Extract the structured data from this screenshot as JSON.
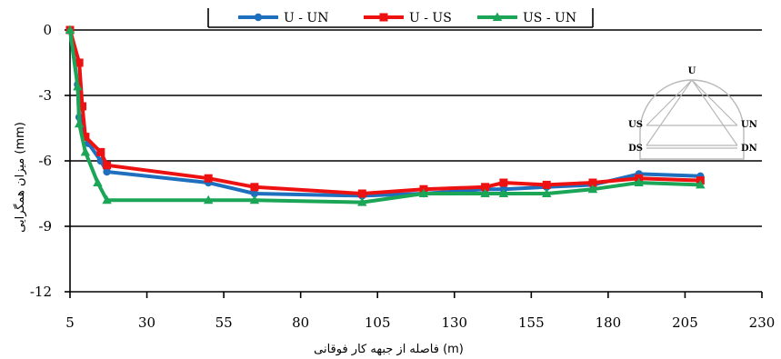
{
  "chart_data": {
    "type": "line",
    "xlabel": "فاصله از جبهه کار فوقانی (m)",
    "ylabel": "میزان همگرایی (mm)",
    "xlim": [
      5,
      230
    ],
    "ylim": [
      -12,
      0
    ],
    "xticks": [
      5,
      30,
      55,
      80,
      105,
      130,
      155,
      180,
      205,
      230
    ],
    "yticks": [
      0,
      -3,
      -6,
      -9,
      -12
    ],
    "grid": "horizontal",
    "legend_position": "top",
    "series": [
      {
        "name": "U - UN",
        "color": "#1f6fbf",
        "marker": "circle",
        "x": [
          5,
          7.5,
          8,
          11,
          15,
          17,
          50,
          65,
          100,
          120,
          140,
          146,
          160,
          175,
          190,
          210
        ],
        "y": [
          0,
          -2.5,
          -4,
          -5.2,
          -6,
          -6.5,
          -7,
          -7.5,
          -7.6,
          -7.5,
          -7.3,
          -7.3,
          -7.2,
          -7.1,
          -6.6,
          -6.7
        ]
      },
      {
        "name": "U - US",
        "color": "#ee1111",
        "marker": "square",
        "x": [
          5,
          8,
          9,
          10,
          15,
          17,
          50,
          65,
          100,
          120,
          140,
          146,
          160,
          175,
          190,
          210
        ],
        "y": [
          0,
          -1.5,
          -3.5,
          -4.9,
          -5.6,
          -6.2,
          -6.8,
          -7.2,
          -7.5,
          -7.3,
          -7.2,
          -7,
          -7.1,
          -7,
          -6.8,
          -6.9
        ]
      },
      {
        "name": "US - UN",
        "color": "#1aa557",
        "marker": "triangle",
        "x": [
          5,
          7.5,
          8,
          10,
          14,
          17,
          50,
          65,
          100,
          120,
          140,
          146,
          160,
          175,
          190,
          210
        ],
        "y": [
          0,
          -2.6,
          -4.3,
          -5.6,
          -7,
          -7.8,
          -7.8,
          -7.8,
          -7.9,
          -7.5,
          -7.5,
          -7.5,
          -7.5,
          -7.3,
          -7,
          -7.1
        ]
      }
    ],
    "inset": {
      "labels": [
        "U",
        "US",
        "UN",
        "DS",
        "DN"
      ]
    }
  }
}
